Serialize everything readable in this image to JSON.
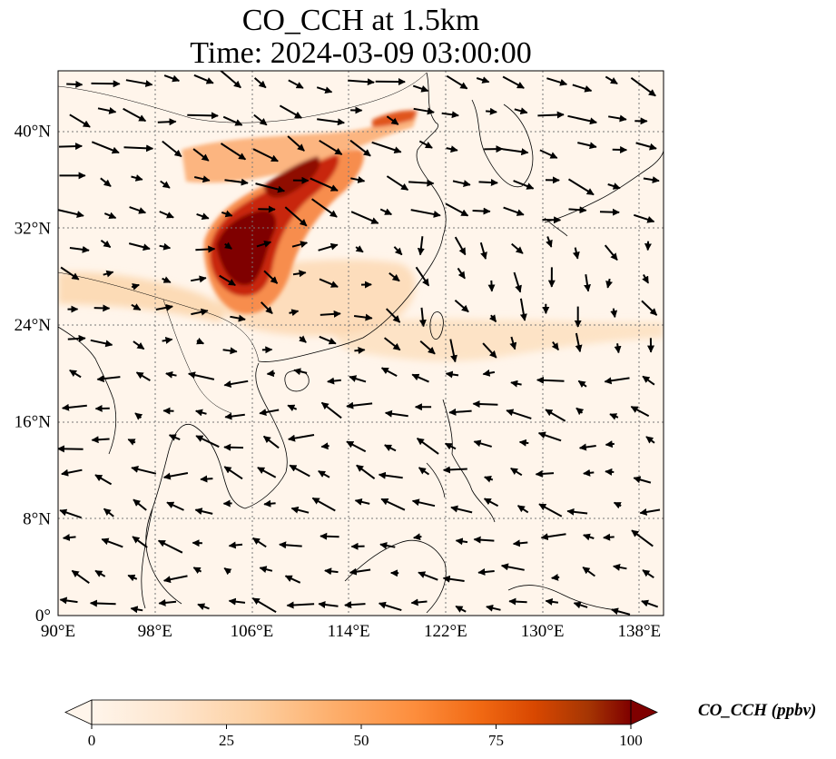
{
  "title": {
    "line1": "CO_CCH at 1.5km",
    "line2": "Time: 2024-03-09 03:00:00"
  },
  "map": {
    "lon_range": [
      90,
      140
    ],
    "lat_range": [
      0,
      45
    ],
    "x_ticks": [
      {
        "value": 90,
        "label": "90°E"
      },
      {
        "value": 98,
        "label": "98°E"
      },
      {
        "value": 106,
        "label": "106°E"
      },
      {
        "value": 114,
        "label": "114°E"
      },
      {
        "value": 122,
        "label": "122°E"
      },
      {
        "value": 130,
        "label": "130°E"
      },
      {
        "value": 138,
        "label": "138°E"
      }
    ],
    "y_ticks": [
      {
        "value": 0,
        "label": "0°"
      },
      {
        "value": 8,
        "label": "8°N"
      },
      {
        "value": 16,
        "label": "16°N"
      },
      {
        "value": 24,
        "label": "24°N"
      },
      {
        "value": 32,
        "label": "32°N"
      },
      {
        "value": 40,
        "label": "40°N"
      }
    ],
    "gridlines": true,
    "background_color": "#fff5eb",
    "plume_color_scale": [
      "#fff5eb",
      "#fdd3a7",
      "#fd9243",
      "#de4e05",
      "#a31203",
      "#7f0000"
    ]
  },
  "colorbar": {
    "label": "CO_CCH (ppbv)",
    "min": 0,
    "max": 100,
    "ticks": [
      {
        "value": 0,
        "label": "0"
      },
      {
        "value": 25,
        "label": "25"
      },
      {
        "value": 50,
        "label": "50"
      },
      {
        "value": 75,
        "label": "75"
      },
      {
        "value": 100,
        "label": "100"
      }
    ],
    "colormap": "OrRd",
    "extend": "both"
  }
}
